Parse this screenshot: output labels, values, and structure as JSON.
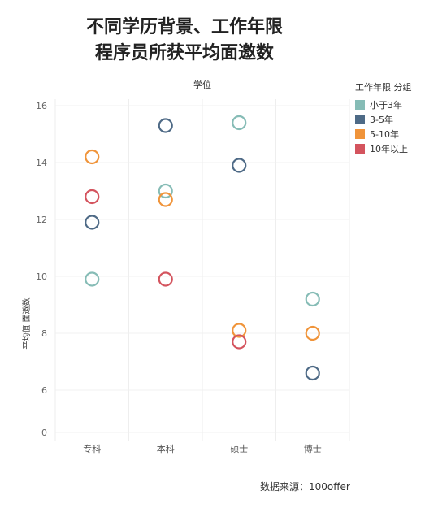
{
  "title_lines": [
    "不同学历背景、工作年限",
    "程序员所获平均面邀数"
  ],
  "source": "数据来源：100offer",
  "chart_data": {
    "type": "scatter",
    "column_header": "学位",
    "categories": [
      "专科",
      "本科",
      "硕士",
      "博士"
    ],
    "ylabel": "平均值 面邀数",
    "ylim": [
      0,
      16
    ],
    "y_ticks": [
      0,
      6,
      8,
      10,
      12,
      14,
      16
    ],
    "grid": true,
    "legend_title": "工作年限 分组",
    "legend_position": "top-right",
    "series": [
      {
        "name": "小于3年",
        "color": "#86bcb6",
        "values": [
          9.9,
          13.0,
          15.4,
          9.2
        ]
      },
      {
        "name": "3-5年",
        "color": "#4e6a86",
        "values": [
          11.9,
          15.3,
          13.9,
          6.6
        ]
      },
      {
        "name": "5-10年",
        "color": "#f0943a",
        "values": [
          14.2,
          12.7,
          8.1,
          8.0
        ]
      },
      {
        "name": "10年以上",
        "color": "#d4545e",
        "values": [
          12.8,
          9.9,
          7.7,
          null
        ]
      }
    ]
  }
}
